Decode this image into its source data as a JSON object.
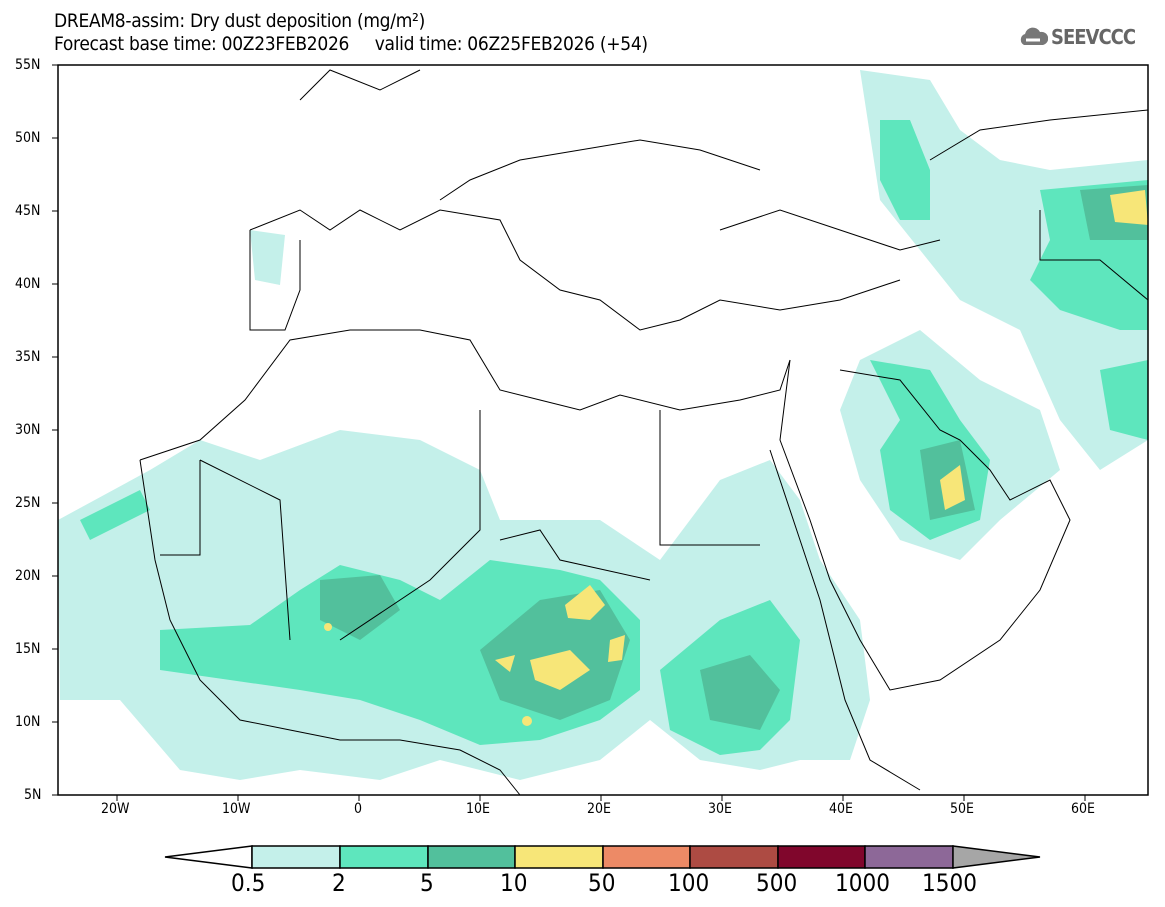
{
  "header": {
    "title": "DREAM8-assim: Dry dust deposition (mg/m²)",
    "subtitle": "Forecast base time: 00Z23FEB2026     valid time: 06Z25FEB2026 (+54)",
    "logo": "SEEVCCC"
  },
  "map": {
    "lat_labels": [
      "55N",
      "50N",
      "45N",
      "40N",
      "35N",
      "30N",
      "25N",
      "20N",
      "15N",
      "10N",
      "5N"
    ],
    "lon_labels": [
      "20W",
      "10W",
      "0",
      "10E",
      "20E",
      "30E",
      "40E",
      "50E",
      "60E"
    ]
  },
  "colorbar": {
    "labels": [
      "0.5",
      "2",
      "5",
      "10",
      "50",
      "100",
      "500",
      "1000",
      "1500"
    ],
    "colors": [
      "#c4f0ea",
      "#5ee6bd",
      "#52c09c",
      "#f7e678",
      "#ed8a66",
      "#ad4b43",
      "#80062c",
      "#8d6898"
    ],
    "under_color": "#ffffff",
    "over_color": "#a6a6a6"
  }
}
